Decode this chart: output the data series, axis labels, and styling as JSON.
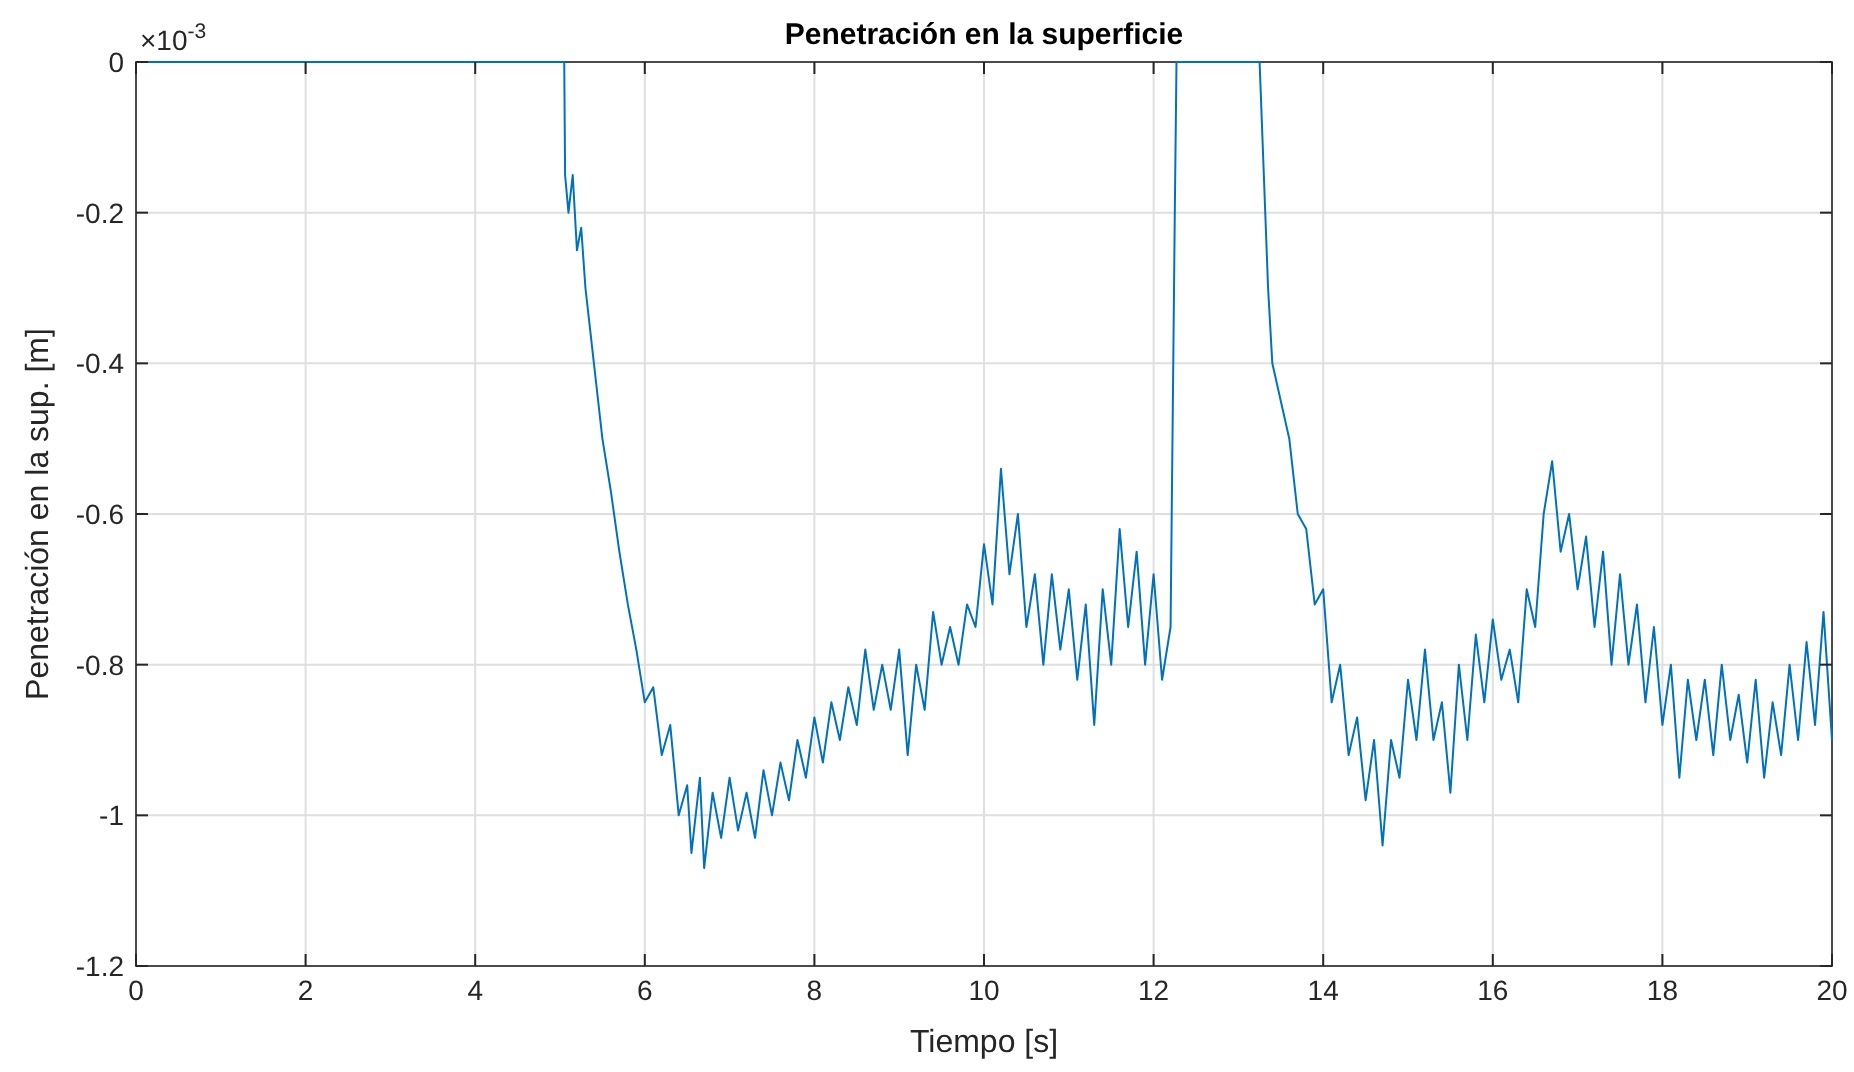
{
  "chart_data": {
    "type": "line",
    "title": "Penetración en la superficie",
    "xlabel": "Tiempo [s]",
    "ylabel": "Penetración en la sup. [m]",
    "annotations": [
      "×10$^{-3}$"
    ],
    "x": [
      0,
      5.05,
      5.06,
      5.1,
      5.15,
      5.2,
      5.25,
      5.3,
      5.35,
      5.4,
      5.45,
      5.5,
      5.6,
      5.7,
      5.8,
      5.9,
      6.0,
      6.1,
      6.2,
      6.3,
      6.4,
      6.5,
      6.55,
      6.65,
      6.7,
      6.8,
      6.9,
      7.0,
      7.1,
      7.2,
      7.3,
      7.4,
      7.5,
      7.6,
      7.7,
      7.8,
      7.9,
      8.0,
      8.1,
      8.2,
      8.3,
      8.4,
      8.5,
      8.6,
      8.7,
      8.8,
      8.9,
      9.0,
      9.1,
      9.2,
      9.3,
      9.4,
      9.5,
      9.6,
      9.7,
      9.8,
      9.9,
      10.0,
      10.1,
      10.2,
      10.3,
      10.4,
      10.5,
      10.6,
      10.7,
      10.8,
      10.9,
      11.0,
      11.1,
      11.2,
      11.3,
      11.4,
      11.5,
      11.6,
      11.7,
      11.8,
      11.9,
      12.0,
      12.1,
      12.2,
      12.25,
      12.27,
      13.25,
      13.3,
      13.35,
      13.4,
      13.5,
      13.6,
      13.7,
      13.8,
      13.9,
      14.0,
      14.1,
      14.2,
      14.3,
      14.4,
      14.5,
      14.6,
      14.7,
      14.8,
      14.9,
      15.0,
      15.1,
      15.2,
      15.3,
      15.4,
      15.5,
      15.6,
      15.7,
      15.8,
      15.9,
      16.0,
      16.1,
      16.2,
      16.3,
      16.4,
      16.5,
      16.6,
      16.7,
      16.8,
      16.9,
      17.0,
      17.1,
      17.2,
      17.3,
      17.4,
      17.5,
      17.6,
      17.7,
      17.8,
      17.9,
      18.0,
      18.1,
      18.2,
      18.3,
      18.4,
      18.5,
      18.6,
      18.7,
      18.8,
      18.9,
      19.0,
      19.1,
      19.2,
      19.3,
      19.4,
      19.5,
      19.6,
      19.7,
      19.8,
      19.9,
      20.0
    ],
    "series": [
      {
        "color": "#0072bd",
        "values": [
          0,
          0,
          -0.15,
          -0.2,
          -0.15,
          -0.25,
          -0.22,
          -0.3,
          -0.35,
          -0.4,
          -0.45,
          -0.5,
          -0.57,
          -0.65,
          -0.72,
          -0.78,
          -0.85,
          -0.83,
          -0.92,
          -0.88,
          -1.0,
          -0.96,
          -1.05,
          -0.95,
          -1.07,
          -0.97,
          -1.03,
          -0.95,
          -1.02,
          -0.97,
          -1.03,
          -0.94,
          -1.0,
          -0.93,
          -0.98,
          -0.9,
          -0.95,
          -0.87,
          -0.93,
          -0.85,
          -0.9,
          -0.83,
          -0.88,
          -0.78,
          -0.86,
          -0.8,
          -0.86,
          -0.78,
          -0.92,
          -0.8,
          -0.86,
          -0.73,
          -0.8,
          -0.75,
          -0.8,
          -0.72,
          -0.75,
          -0.64,
          -0.72,
          -0.54,
          -0.68,
          -0.6,
          -0.75,
          -0.68,
          -0.8,
          -0.68,
          -0.78,
          -0.7,
          -0.82,
          -0.72,
          -0.88,
          -0.7,
          -0.8,
          -0.62,
          -0.75,
          -0.65,
          -0.8,
          -0.68,
          -0.82,
          -0.75,
          -0.2,
          0,
          0,
          -0.15,
          -0.3,
          -0.4,
          -0.45,
          -0.5,
          -0.6,
          -0.62,
          -0.72,
          -0.7,
          -0.85,
          -0.8,
          -0.92,
          -0.87,
          -0.98,
          -0.9,
          -1.04,
          -0.9,
          -0.95,
          -0.82,
          -0.9,
          -0.78,
          -0.9,
          -0.85,
          -0.97,
          -0.8,
          -0.9,
          -0.76,
          -0.85,
          -0.74,
          -0.82,
          -0.78,
          -0.85,
          -0.7,
          -0.75,
          -0.6,
          -0.53,
          -0.65,
          -0.6,
          -0.7,
          -0.63,
          -0.75,
          -0.65,
          -0.8,
          -0.68,
          -0.8,
          -0.72,
          -0.85,
          -0.75,
          -0.88,
          -0.8,
          -0.95,
          -0.82,
          -0.9,
          -0.82,
          -0.92,
          -0.8,
          -0.9,
          -0.84,
          -0.93,
          -0.82,
          -0.95,
          -0.85,
          -0.92,
          -0.8,
          -0.9,
          -0.77,
          -0.88,
          -0.73,
          -0.9
        ]
      }
    ],
    "xlim": [
      0,
      20
    ],
    "xticks": [
      0,
      2,
      4,
      6,
      8,
      10,
      12,
      14,
      16,
      18,
      20
    ],
    "ylim": [
      -1.2,
      0
    ],
    "yticks": [
      -1.2,
      -1,
      -0.8,
      -0.6,
      -0.4,
      -0.2,
      0
    ],
    "grid": true
  }
}
